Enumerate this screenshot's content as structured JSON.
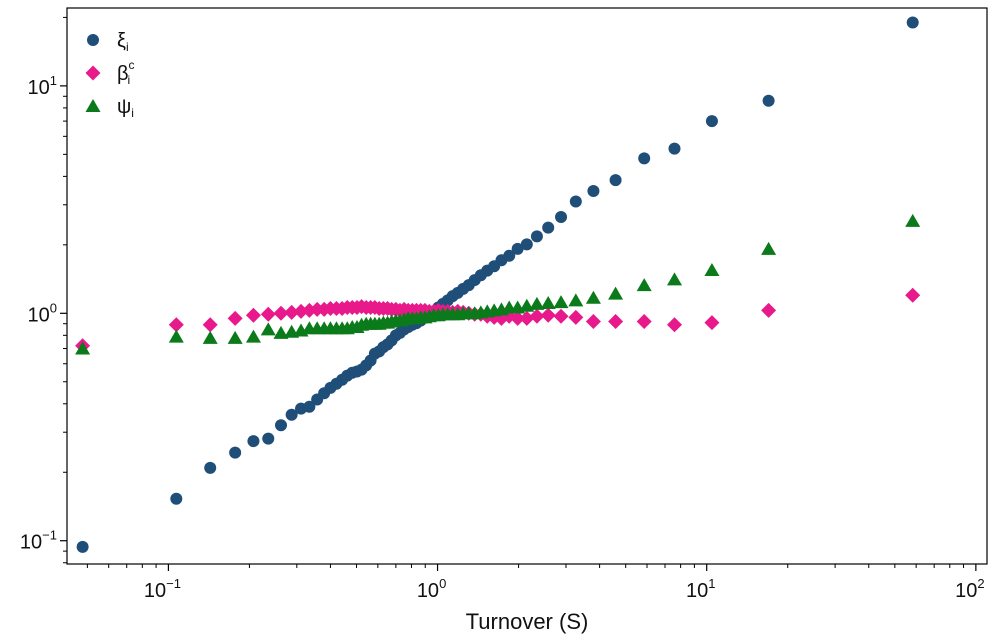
{
  "chart_data": {
    "type": "scatter",
    "title": "",
    "xlabel": "Turnover (S)",
    "ylabel": "",
    "xscale": "log",
    "yscale": "log",
    "xlim": [
      0.042,
      110
    ],
    "ylim": [
      0.079,
      22
    ],
    "grid": false,
    "legend_position": "top-left",
    "x_ticks": [
      {
        "base": "10",
        "exp": "−1",
        "value": 0.1
      },
      {
        "base": "10",
        "exp": "0",
        "value": 1
      },
      {
        "base": "10",
        "exp": "1",
        "value": 10
      },
      {
        "base": "10",
        "exp": "2",
        "value": 100
      }
    ],
    "y_ticks": [
      {
        "base": "10",
        "exp": "−1",
        "value": 0.1
      },
      {
        "base": "10",
        "exp": "0",
        "value": 1
      },
      {
        "base": "10",
        "exp": "1",
        "value": 10
      }
    ],
    "x": [
      0.048,
      0.107,
      0.143,
      0.177,
      0.207,
      0.235,
      0.262,
      0.287,
      0.311,
      0.334,
      0.357,
      0.379,
      0.4,
      0.421,
      0.442,
      0.462,
      0.482,
      0.502,
      0.522,
      0.543,
      0.564,
      0.585,
      0.607,
      0.629,
      0.652,
      0.675,
      0.7,
      0.725,
      0.751,
      0.778,
      0.806,
      0.835,
      0.866,
      0.898,
      0.932,
      0.968,
      1.006,
      1.047,
      1.091,
      1.138,
      1.189,
      1.245,
      1.306,
      1.374,
      1.448,
      1.53,
      1.623,
      1.727,
      1.846,
      1.984,
      2.146,
      2.34,
      2.577,
      2.876,
      3.264,
      3.794,
      4.586,
      5.858,
      7.592,
      10.457,
      16.98,
      58.26
    ],
    "series": [
      {
        "name": "ξ",
        "name_sub": "i",
        "marker": "circle",
        "color": "#1f4e79",
        "values": [
          0.094,
          0.153,
          0.209,
          0.244,
          0.274,
          0.281,
          0.322,
          0.358,
          0.381,
          0.388,
          0.418,
          0.445,
          0.47,
          0.49,
          0.51,
          0.532,
          0.548,
          0.555,
          0.565,
          0.59,
          0.62,
          0.665,
          0.68,
          0.71,
          0.73,
          0.76,
          0.8,
          0.82,
          0.85,
          0.87,
          0.89,
          0.905,
          0.93,
          0.96,
          0.99,
          1.02,
          1.06,
          1.1,
          1.14,
          1.19,
          1.23,
          1.28,
          1.33,
          1.4,
          1.47,
          1.54,
          1.61,
          1.71,
          1.79,
          1.92,
          2.01,
          2.18,
          2.38,
          2.65,
          3.1,
          3.45,
          3.85,
          4.8,
          5.3,
          7.0,
          8.6,
          19.0
        ]
      },
      {
        "name": "β",
        "name_sup": "c",
        "name_sub": "i",
        "marker": "diamond",
        "color": "#e8198b",
        "values": [
          0.72,
          0.89,
          0.89,
          0.95,
          0.98,
          0.99,
          1.0,
          1.01,
          1.02,
          1.03,
          1.04,
          1.04,
          1.05,
          1.05,
          1.05,
          1.06,
          1.06,
          1.06,
          1.07,
          1.06,
          1.06,
          1.06,
          1.05,
          1.05,
          1.05,
          1.04,
          1.04,
          1.03,
          1.04,
          1.03,
          1.03,
          1.03,
          1.03,
          1.03,
          1.02,
          1.02,
          1.03,
          1.02,
          1.02,
          1.01,
          1.02,
          1.01,
          1.0,
          0.99,
          0.99,
          0.97,
          0.96,
          0.95,
          0.97,
          0.95,
          0.95,
          0.97,
          0.98,
          0.97,
          0.96,
          0.92,
          0.92,
          0.92,
          0.89,
          0.91,
          1.03,
          1.2
        ]
      },
      {
        "name": "ψ",
        "name_sub": "i",
        "marker": "triangle",
        "color": "#0a7a1a",
        "values": [
          0.7,
          0.79,
          0.78,
          0.78,
          0.79,
          0.85,
          0.82,
          0.83,
          0.84,
          0.86,
          0.86,
          0.86,
          0.86,
          0.86,
          0.86,
          0.86,
          0.87,
          0.87,
          0.89,
          0.9,
          0.9,
          0.9,
          0.9,
          0.91,
          0.91,
          0.92,
          0.93,
          0.93,
          0.94,
          0.95,
          0.95,
          0.95,
          0.96,
          0.96,
          0.97,
          0.98,
          0.98,
          0.99,
          0.99,
          0.99,
          0.99,
          1.0,
          1.0,
          1.0,
          1.01,
          1.02,
          1.03,
          1.04,
          1.06,
          1.06,
          1.08,
          1.1,
          1.11,
          1.12,
          1.14,
          1.17,
          1.22,
          1.33,
          1.41,
          1.55,
          1.92,
          2.55
        ]
      }
    ]
  }
}
